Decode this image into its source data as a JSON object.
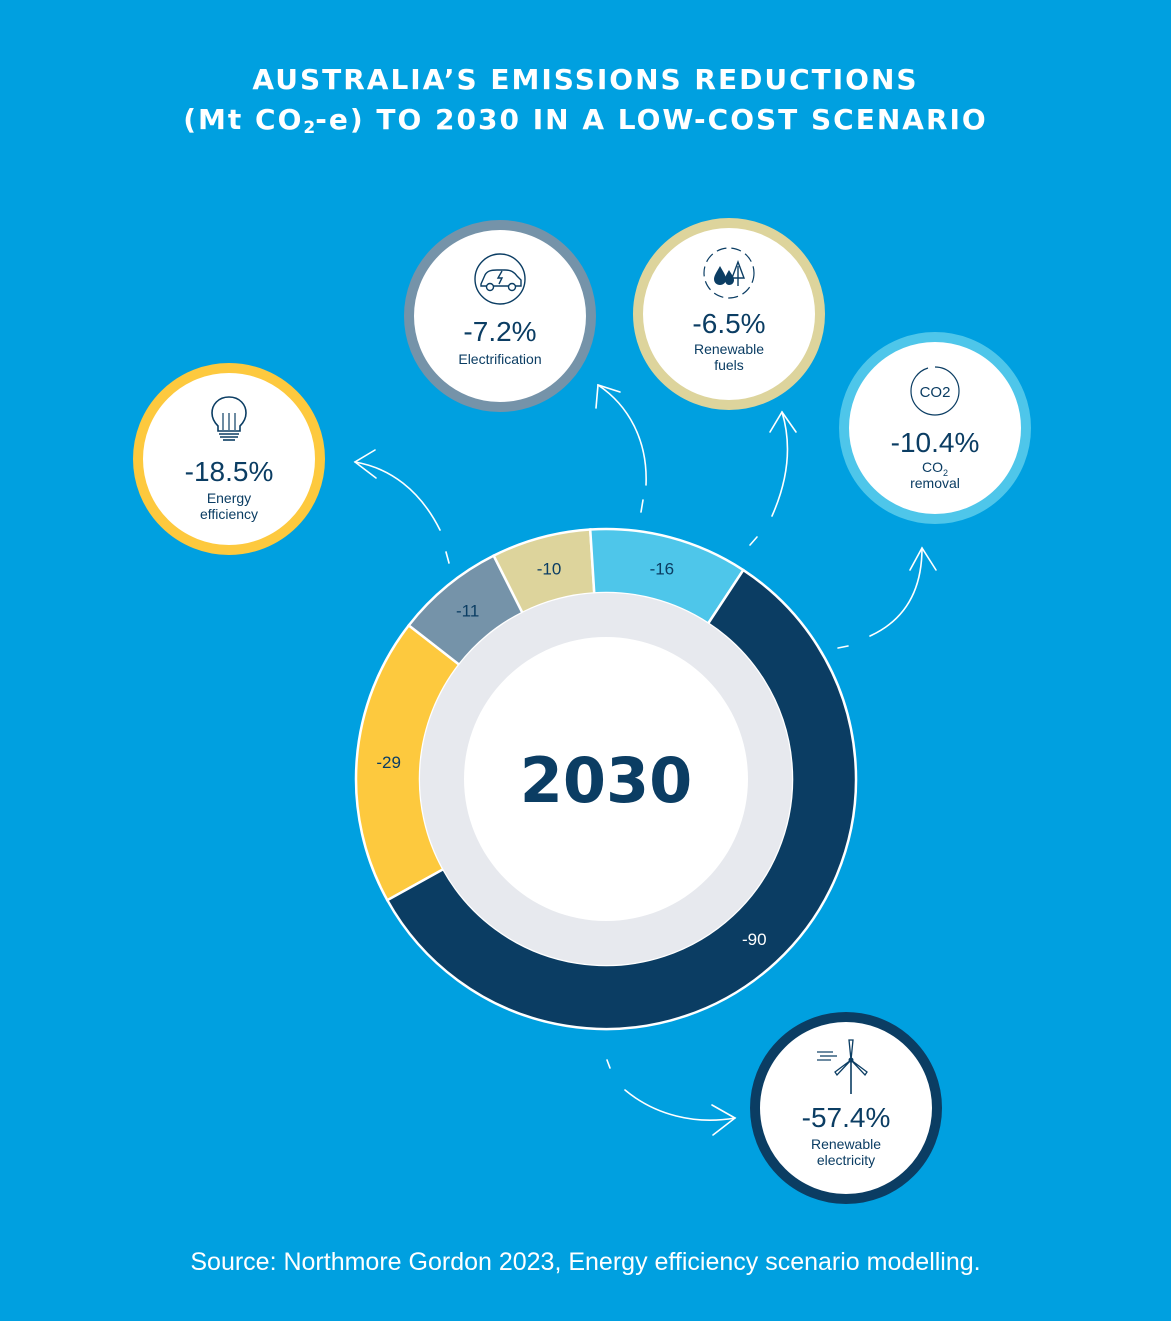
{
  "title": {
    "line1": "AUSTRALIA’S EMISSIONS REDUCTIONS",
    "line2_pre": "(Mt CO",
    "line2_sub": "2",
    "line2_post": "-e) TO 2030 IN A LOW-COST SCENARIO"
  },
  "center_label": "2030",
  "source": "Source: Northmore Gordon 2023, Energy efficiency scenario modelling.",
  "colors": {
    "background": "#00a0e0",
    "energy_efficiency": "#fdc93e",
    "electrification": "#7593a9",
    "renewable_fuels": "#ddd49c",
    "co2_removal": "#4ec6ea",
    "renewable_electricity": "#0b3d63",
    "inner_ring": "#e7e9ee"
  },
  "chart_data": {
    "type": "pie",
    "title": "AUSTRALIA’S EMISSIONS REDUCTIONS (Mt CO2-e) TO 2030 IN A LOW-COST SCENARIO",
    "center_label": "2030",
    "segments": [
      {
        "key": "energy_efficiency",
        "name": "Energy efficiency",
        "value": -29,
        "value_label": "-29",
        "percent": -18.5,
        "percent_label": "-18.5%",
        "color": "#fdc93e",
        "icon": "lightbulb-icon"
      },
      {
        "key": "electrification",
        "name": "Electrification",
        "value": -11,
        "value_label": "-11",
        "percent": -7.2,
        "percent_label": "-7.2%",
        "color": "#7593a9",
        "icon": "electric-car-icon"
      },
      {
        "key": "renewable_fuels",
        "name": "Renewable fuels",
        "value": -10,
        "value_label": "-10",
        "percent": -6.5,
        "percent_label": "-6.5%",
        "color": "#ddd49c",
        "icon": "water-drops-leaf-icon"
      },
      {
        "key": "co2_removal",
        "name": "CO2 removal",
        "value": -16,
        "value_label": "-16",
        "percent": -10.4,
        "percent_label": "-10.4%",
        "color": "#4ec6ea",
        "icon": "co2-recycle-icon"
      },
      {
        "key": "renewable_electricity",
        "name": "Renewable electricity",
        "value": -90,
        "value_label": "-90",
        "percent": -57.4,
        "percent_label": "-57.4%",
        "color": "#0b3d63",
        "icon": "wind-turbine-icon"
      }
    ]
  },
  "callouts": {
    "energy_efficiency": {
      "pct": "-18.5%",
      "label_line1": "Energy",
      "label_line2": "efficiency"
    },
    "electrification": {
      "pct": "-7.2%",
      "label_line1": "Electrification"
    },
    "renewable_fuels": {
      "pct": "-6.5%",
      "label_line1": "Renewable",
      "label_line2": "fuels"
    },
    "co2_removal": {
      "pct": "-10.4%",
      "label_co": "CO",
      "label_sub": "2",
      "label_line2": "removal",
      "icon_text": "CO2"
    },
    "renewable_electricity": {
      "pct": "-57.4%",
      "label_line1": "Renewable",
      "label_line2": "electricity"
    }
  }
}
